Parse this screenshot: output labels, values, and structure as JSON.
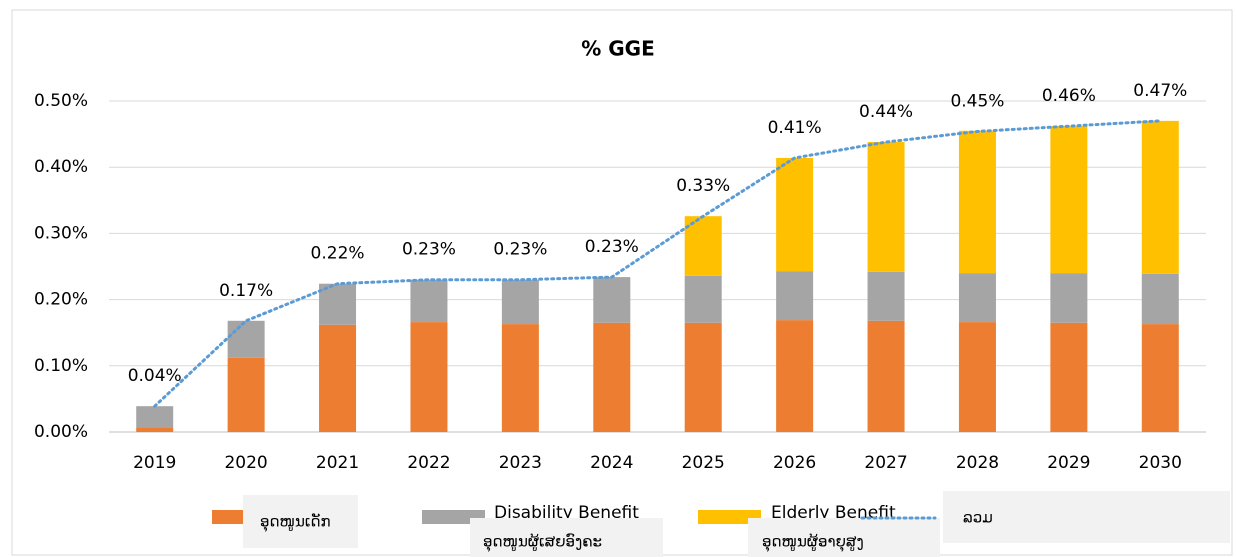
{
  "chart_data": {
    "type": "stacked-bar-line",
    "title": "% GGE",
    "categories": [
      "2019",
      "2020",
      "2021",
      "2022",
      "2023",
      "2024",
      "2025",
      "2026",
      "2027",
      "2028",
      "2029",
      "2030"
    ],
    "series": [
      {
        "name": "ອຸດໜູນເດັກ",
        "color": "#ed7d31",
        "values": [
          0.007,
          0.112,
          0.162,
          0.166,
          0.163,
          0.165,
          0.165,
          0.169,
          0.168,
          0.166,
          0.165,
          0.163
        ]
      },
      {
        "name": "Disability Benefit",
        "color": "#a5a5a5",
        "values": [
          0.032,
          0.056,
          0.062,
          0.064,
          0.067,
          0.069,
          0.071,
          0.074,
          0.074,
          0.074,
          0.075,
          0.076
        ]
      },
      {
        "name": "Elderly Benefit",
        "color": "#ffc000",
        "values": [
          0,
          0,
          0,
          0,
          0,
          0,
          0.09,
          0.171,
          0.196,
          0.215,
          0.222,
          0.231
        ]
      },
      {
        "name": "ລວມ",
        "type": "line",
        "color": "#5b9bd5",
        "values": [
          0.039,
          0.168,
          0.224,
          0.23,
          0.23,
          0.234,
          0.326,
          0.414,
          0.438,
          0.454,
          0.462,
          0.47
        ],
        "value_labels": [
          "0.04%",
          "0.17%",
          "0.22%",
          "0.23%",
          "0.23%",
          "0.23%",
          "0.33%",
          "0.41%",
          "0.44%",
          "0.45%",
          "0.46%",
          "0.47%"
        ]
      }
    ],
    "annotations": [
      "ອຸດໜູນຜູ້ເສຍອົງຄະ",
      "ອຸດໜູນຜູ້ອາຍຸສູງ"
    ],
    "ylim": [
      0,
      0.5
    ],
    "yticks": [
      {
        "value": 0,
        "label": "0.00%"
      },
      {
        "value": 0.1,
        "label": "0.10%"
      },
      {
        "value": 0.2,
        "label": "0.20%"
      },
      {
        "value": 0.3,
        "label": "0.30%"
      },
      {
        "value": 0.4,
        "label": "0.40%"
      },
      {
        "value": 0.5,
        "label": "0.50%"
      }
    ],
    "grid": true,
    "legend": "bottom"
  }
}
